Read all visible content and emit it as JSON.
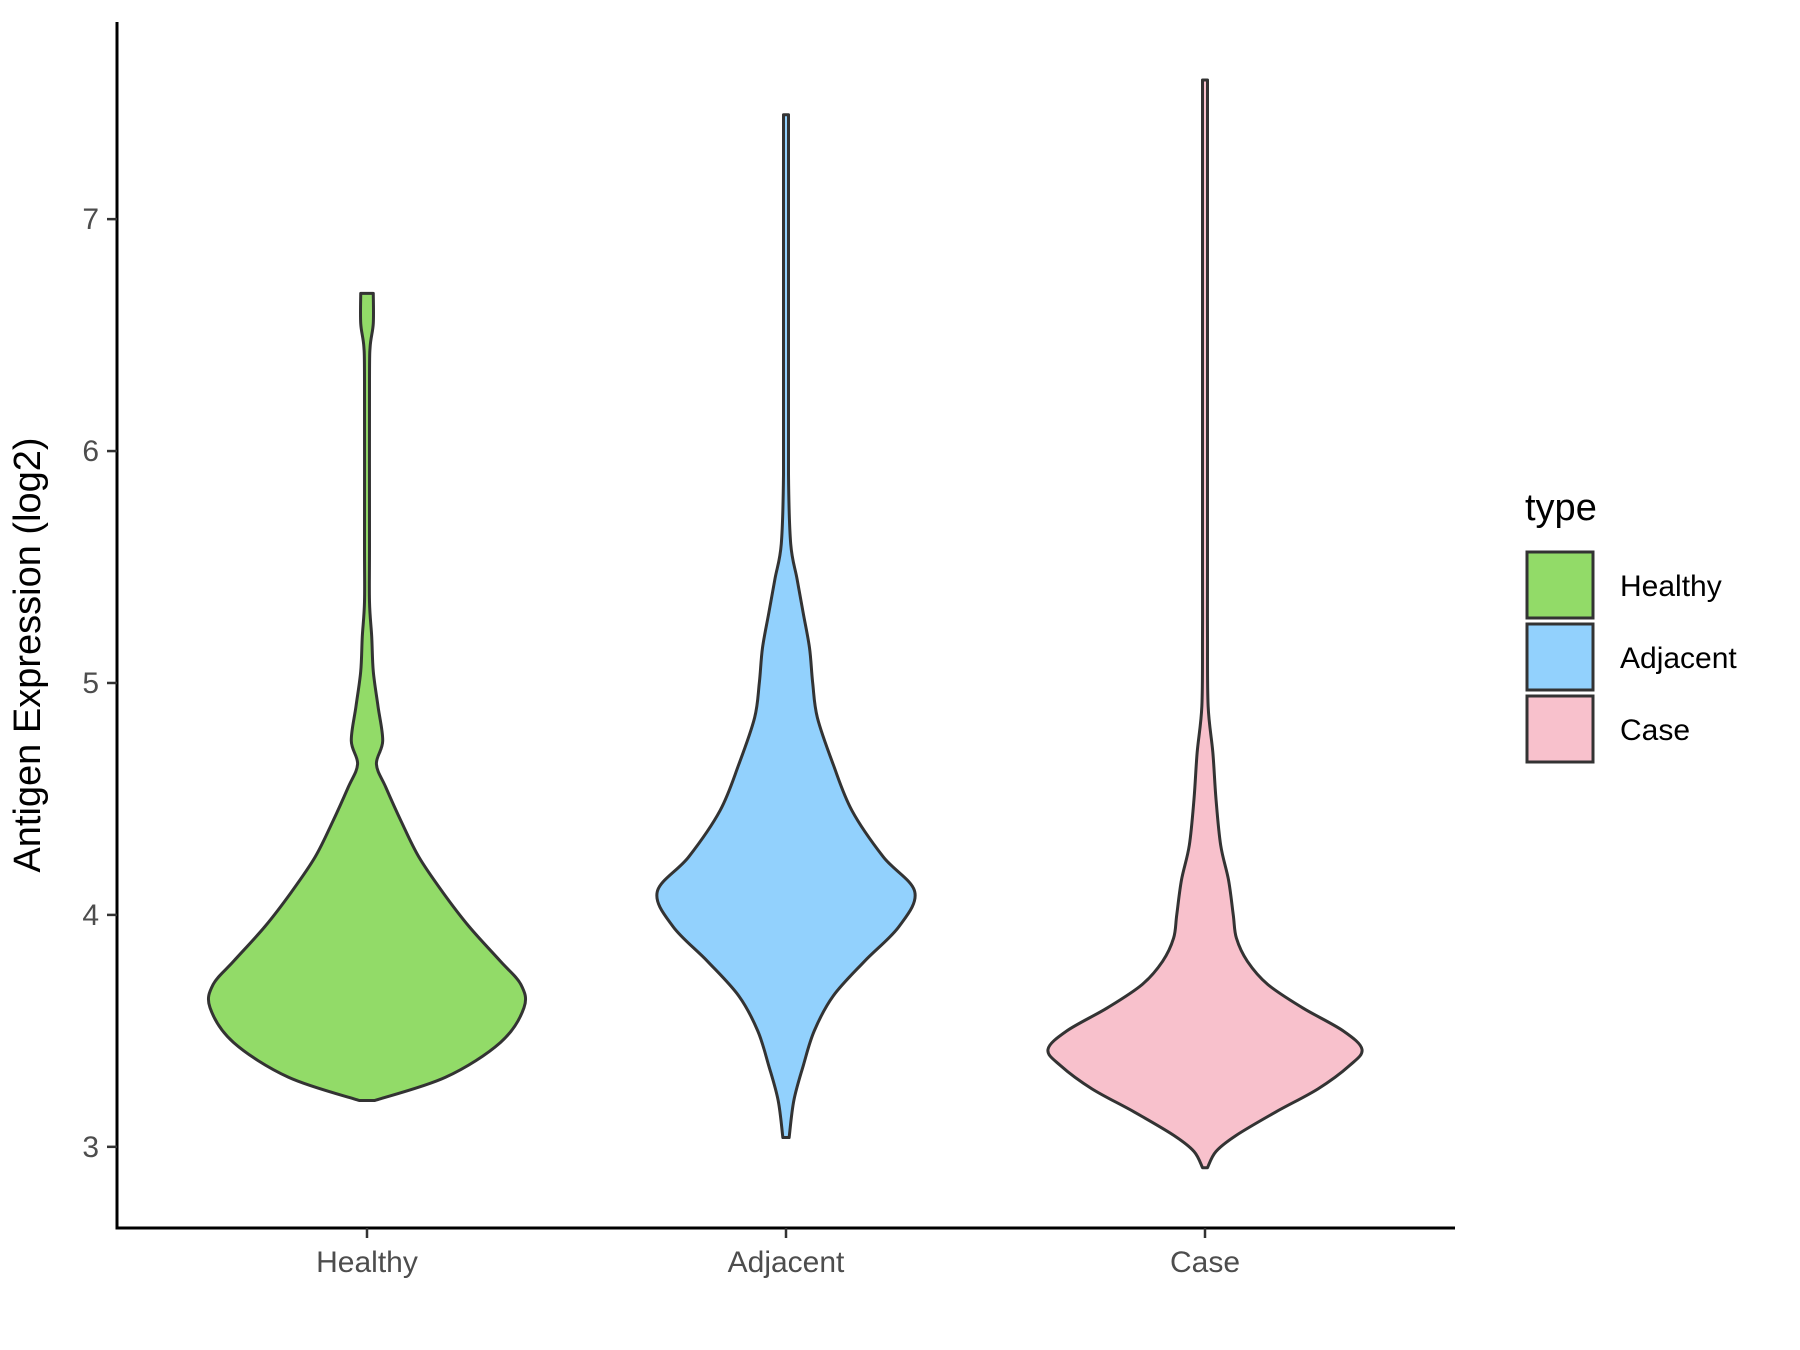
{
  "chart_data": {
    "type": "violin",
    "xlabel": "",
    "ylabel": "Antigen Expression (log2)",
    "ylim": [
      2.65,
      7.85
    ],
    "y_ticks": [
      3,
      4,
      5,
      6,
      7
    ],
    "categories": [
      "Healthy",
      "Adjacent",
      "Case"
    ],
    "grid": false,
    "legend": {
      "title": "type",
      "placement": "right",
      "entries": [
        {
          "label": "Healthy",
          "color": "#92DB68"
        },
        {
          "label": "Adjacent",
          "color": "#92D1FD"
        },
        {
          "label": "Case",
          "color": "#F8C1CC"
        }
      ]
    },
    "outline_color": "#333333",
    "series": [
      {
        "name": "Healthy",
        "color": "#92DB68",
        "min": 3.2,
        "max": 6.68,
        "density_profile": [
          [
            3.2,
            0.05
          ],
          [
            3.3,
            0.5
          ],
          [
            3.45,
            0.85
          ],
          [
            3.6,
            1.0
          ],
          [
            3.7,
            0.98
          ],
          [
            3.8,
            0.85
          ],
          [
            3.95,
            0.65
          ],
          [
            4.1,
            0.48
          ],
          [
            4.25,
            0.33
          ],
          [
            4.4,
            0.22
          ],
          [
            4.55,
            0.12
          ],
          [
            4.65,
            0.06
          ],
          [
            4.75,
            0.1
          ],
          [
            4.9,
            0.07
          ],
          [
            5.05,
            0.04
          ],
          [
            5.2,
            0.03
          ],
          [
            5.35,
            0.015
          ],
          [
            5.6,
            0.01
          ],
          [
            6.3,
            0.01
          ],
          [
            6.45,
            0.02
          ],
          [
            6.55,
            0.04
          ],
          [
            6.68,
            0.04
          ]
        ]
      },
      {
        "name": "Adjacent",
        "color": "#92D1FD",
        "min": 3.04,
        "max": 7.45,
        "density_profile": [
          [
            3.04,
            0.02
          ],
          [
            3.2,
            0.05
          ],
          [
            3.35,
            0.11
          ],
          [
            3.5,
            0.18
          ],
          [
            3.65,
            0.3
          ],
          [
            3.8,
            0.5
          ],
          [
            3.95,
            0.72
          ],
          [
            4.1,
            0.82
          ],
          [
            4.25,
            0.62
          ],
          [
            4.45,
            0.42
          ],
          [
            4.65,
            0.3
          ],
          [
            4.85,
            0.2
          ],
          [
            5.0,
            0.17
          ],
          [
            5.15,
            0.15
          ],
          [
            5.3,
            0.11
          ],
          [
            5.45,
            0.07
          ],
          [
            5.6,
            0.03
          ],
          [
            5.9,
            0.01
          ],
          [
            6.5,
            0.005
          ],
          [
            7.45,
            0.005
          ]
        ]
      },
      {
        "name": "Case",
        "color": "#F8C1CC",
        "min": 2.91,
        "max": 7.6,
        "density_profile": [
          [
            2.91,
            0.01
          ],
          [
            2.98,
            0.07
          ],
          [
            3.05,
            0.2
          ],
          [
            3.15,
            0.45
          ],
          [
            3.25,
            0.72
          ],
          [
            3.35,
            0.92
          ],
          [
            3.42,
            1.0
          ],
          [
            3.5,
            0.88
          ],
          [
            3.6,
            0.62
          ],
          [
            3.7,
            0.4
          ],
          [
            3.8,
            0.27
          ],
          [
            3.9,
            0.2
          ],
          [
            4.0,
            0.18
          ],
          [
            4.15,
            0.15
          ],
          [
            4.3,
            0.1
          ],
          [
            4.5,
            0.07
          ],
          [
            4.7,
            0.05
          ],
          [
            4.9,
            0.02
          ],
          [
            5.2,
            0.01
          ],
          [
            5.5,
            0.008
          ],
          [
            6.2,
            0.008
          ],
          [
            7.6,
            0.003
          ]
        ]
      }
    ]
  }
}
